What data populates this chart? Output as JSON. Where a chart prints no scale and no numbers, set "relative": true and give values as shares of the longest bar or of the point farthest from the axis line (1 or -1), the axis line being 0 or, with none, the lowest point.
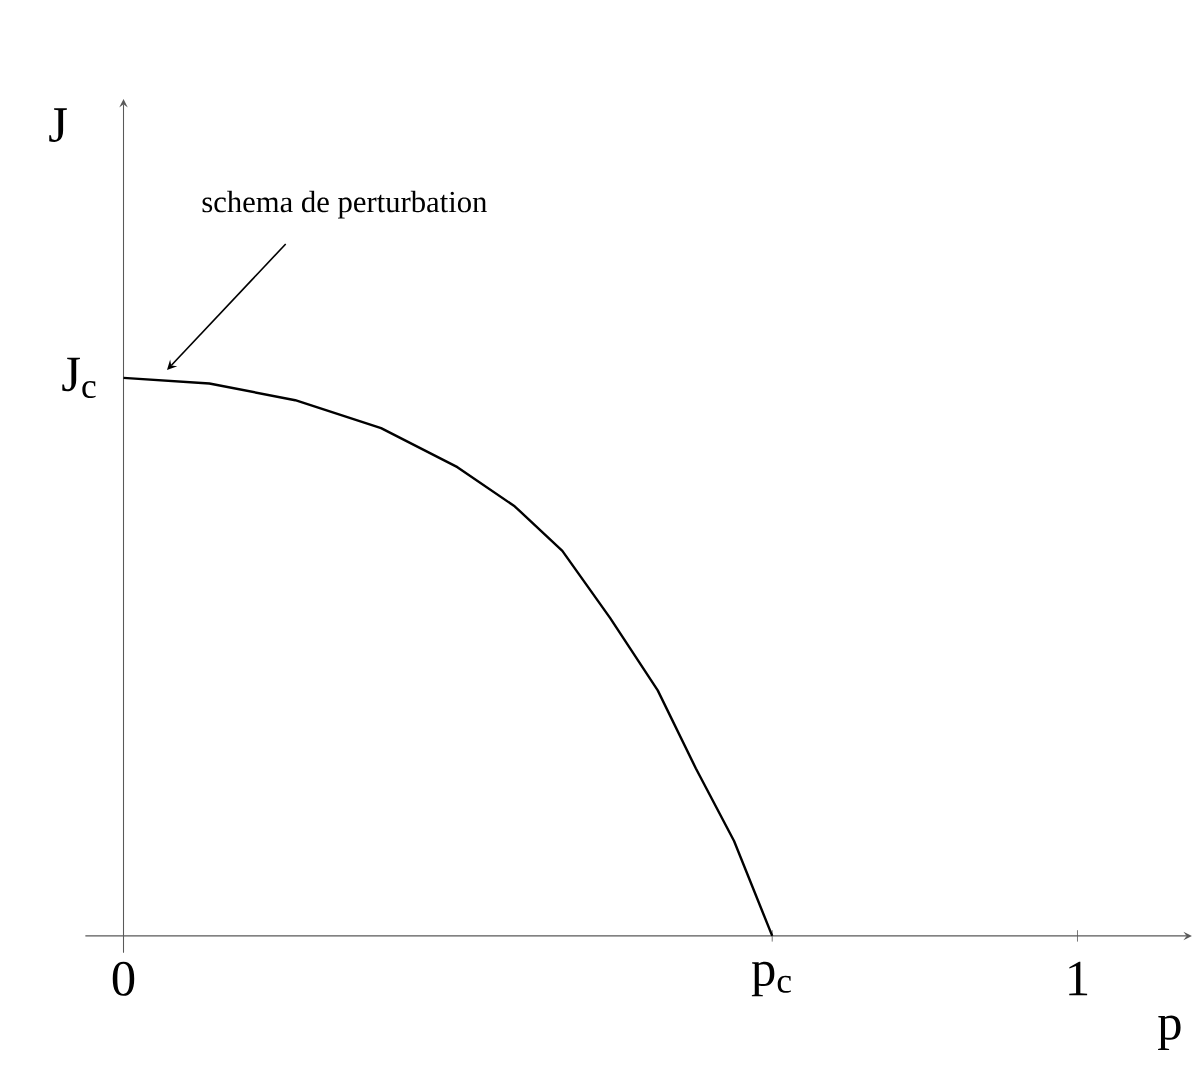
{
  "chart_data": {
    "type": "line",
    "relative": true,
    "xlabel": "p",
    "ylabel": "J",
    "x": [
      0,
      0.09,
      0.18,
      0.27,
      0.35,
      0.41,
      0.46,
      0.51,
      0.56,
      0.6,
      0.64,
      0.68
    ],
    "series": [
      {
        "color": "#000000",
        "values": [
          1,
          0.99,
          0.96,
          0.91,
          0.84,
          0.77,
          0.69,
          0.57,
          0.44,
          0.3,
          0.17,
          0
        ]
      }
    ],
    "xlim": [
      -0.04,
      1.12
    ],
    "xticks": [
      0,
      {
        "value": 0.68,
        "label": "p$_{c}$"
      },
      1
    ],
    "annotations": [
      {
        "text": "schema de perturbation",
        "x": 0.04,
        "y": 1
      },
      {
        "text": "J$_{c}$",
        "x": 0,
        "y": 1
      }
    ]
  }
}
